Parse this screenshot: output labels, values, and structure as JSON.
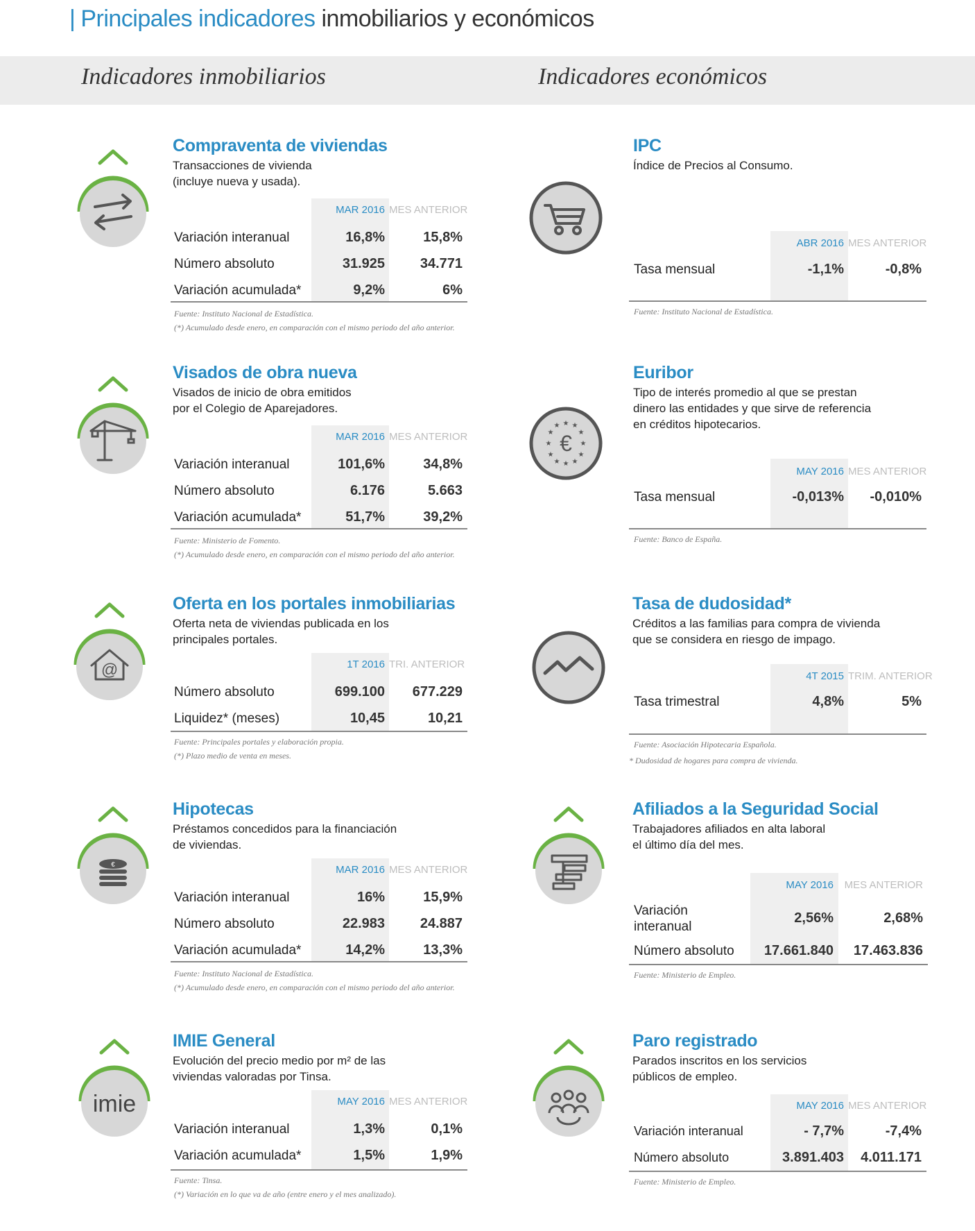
{
  "header": {
    "title_blue": "Principales indicadores",
    "title_dark": "inmobiliarios y económicos",
    "left_heading": "Indicadores inmobiliarios",
    "right_heading": "Indicadores económicos"
  },
  "left": [
    {
      "title": "Compraventa de viviendas",
      "desc1": "Transacciones de vivienda",
      "desc2": "(incluye nueva y usada).",
      "col_cur": "MAR 2016",
      "col_prev": "MES ANTERIOR",
      "rows": [
        {
          "label": "Variación interanual",
          "cur": "16,8%",
          "prev": "15,8%"
        },
        {
          "label": "Número absoluto",
          "cur": "31.925",
          "prev": "34.771"
        },
        {
          "label": "Variación acumulada*",
          "cur": "9,2%",
          "prev": "6%"
        }
      ],
      "note1": "Fuente: Instituto Nacional de Estadística.",
      "note2": "(*) Acumulado desde enero, en comparación con el mismo periodo del año anterior.",
      "icon": "arrows-exchange-icon"
    },
    {
      "title": "Visados de obra nueva",
      "desc1": "Visados de inicio de obra emitidos",
      "desc2": "por el Colegio de Aparejadores.",
      "col_cur": "MAR 2016",
      "col_prev": "MES ANTERIOR",
      "rows": [
        {
          "label": "Variación interanual",
          "cur": "101,6%",
          "prev": "34,8%"
        },
        {
          "label": "Número absoluto",
          "cur": "6.176",
          "prev": "5.663"
        },
        {
          "label": "Variación acumulada*",
          "cur": "51,7%",
          "prev": "39,2%"
        }
      ],
      "note1": "Fuente: Ministerio de Fomento.",
      "note2": "(*) Acumulado desde enero, en comparación con el mismo periodo del año anterior.",
      "icon": "crane-icon"
    },
    {
      "title": "Oferta en los portales inmobiliarias",
      "desc1": "Oferta neta de viviendas publicada en los",
      "desc2": "principales portales.",
      "col_cur": "1T 2016",
      "col_prev": "TRI. ANTERIOR",
      "rows": [
        {
          "label": "Número absoluto",
          "cur": "699.100",
          "prev": "677.229"
        },
        {
          "label": "Liquidez* (meses)",
          "cur": "10,45",
          "prev": "10,21"
        }
      ],
      "note1": "Fuente: Principales portales y elaboración propia.",
      "note2": "(*) Plazo medio de venta en meses.",
      "icon": "house-at-icon"
    },
    {
      "title": "Hipotecas",
      "desc1": "Préstamos concedidos para la financiación",
      "desc2": "de viviendas.",
      "col_cur": "MAR 2016",
      "col_prev": "MES ANTERIOR",
      "rows": [
        {
          "label": "Variación interanual",
          "cur": "16%",
          "prev": "15,9%"
        },
        {
          "label": "Número absoluto",
          "cur": "22.983",
          "prev": "24.887"
        },
        {
          "label": "Variación acumulada*",
          "cur": "14,2%",
          "prev": "13,3%"
        }
      ],
      "note1": "Fuente: Instituto Nacional de Estadística.",
      "note2": "(*) Acumulado desde enero, en comparación con el mismo periodo del año anterior.",
      "icon": "coins-stack-icon"
    },
    {
      "title": "IMIE General",
      "desc1": "Evolución del precio medio por m² de las",
      "desc2": "viviendas valoradas por Tinsa.",
      "col_cur": "MAY 2016",
      "col_prev": "MES ANTERIOR",
      "rows": [
        {
          "label": "Variación interanual",
          "cur": "1,3%",
          "prev": "0,1%"
        },
        {
          "label": "Variación acumulada*",
          "cur": "1,5%",
          "prev": "1,9%"
        }
      ],
      "note1": "Fuente: Tinsa.",
      "note2": "(*) Variación en lo que va de año (entre enero y el mes analizado).",
      "icon": "imie-logo-icon",
      "icon_text": "imie"
    }
  ],
  "right": [
    {
      "title": "IPC",
      "desc1": "Índice de Precios al Consumo.",
      "desc2": "",
      "desc3": "",
      "col_cur": "ABR 2016",
      "col_prev": "MES ANTERIOR",
      "rows": [
        {
          "label": "Tasa mensual",
          "cur": "-1,1%",
          "prev": "-0,8%"
        }
      ],
      "note1": "Fuente: Instituto Nacional de Estadística.",
      "note2": "",
      "icon": "shopping-cart-icon"
    },
    {
      "title": "Euribor",
      "desc1": "Tipo de interés promedio al que se prestan",
      "desc2": "dinero las entidades y que sirve de referencia",
      "desc3": "en créditos hipotecarios.",
      "col_cur": "MAY 2016",
      "col_prev": "MES ANTERIOR",
      "rows": [
        {
          "label": "Tasa mensual",
          "cur": "-0,013%",
          "prev": "-0,010%"
        }
      ],
      "note1": "Fuente: Banco de España.",
      "note2": "",
      "icon": "euro-stars-icon"
    },
    {
      "title": "Tasa de dudosidad*",
      "desc1": "Créditos a las familias para compra de vivienda",
      "desc2": "que se considera en riesgo de impago.",
      "desc3": "",
      "col_cur": "4T 2015",
      "col_prev": "TRIM. ANTERIOR",
      "rows": [
        {
          "label": "Tasa trimestral",
          "cur": "4,8%",
          "prev": "5%"
        }
      ],
      "note1": "Fuente: Asociación Hipotecaria Española.",
      "note2": "* Dudosidad de hogares para compra de vivienda.",
      "icon": "trend-line-icon"
    },
    {
      "title": "Afiliados a la Seguridad Social",
      "desc1": "Trabajadores afiliados en alta laboral",
      "desc2": "el último día del mes.",
      "desc3": "",
      "col_cur": "MAY 2016",
      "col_prev": "MES ANTERIOR",
      "rows": [
        {
          "label": "Variación",
          "label2": "interanual",
          "cur": "2,56%",
          "prev": "2,68%"
        },
        {
          "label": "Número absoluto",
          "cur": "17.661.840",
          "prev": "17.463.836"
        }
      ],
      "note1": "Fuente: Ministerio de Empleo.",
      "note2": "",
      "icon": "document-stack-icon"
    },
    {
      "title": "Paro registrado",
      "desc1": "Parados inscritos en los servicios",
      "desc2": "públicos de empleo.",
      "desc3": "",
      "col_cur": "MAY 2016",
      "col_prev": "MES ANTERIOR",
      "rows": [
        {
          "label": "Variación interanual",
          "cur": "- 7,7%",
          "prev": "-7,4%"
        },
        {
          "label": "Número absoluto",
          "cur": "3.891.403",
          "prev": "4.011.171"
        }
      ],
      "note1": "Fuente: Ministerio de Empleo.",
      "note2": "",
      "icon": "people-group-icon"
    }
  ],
  "colors": {
    "accent_blue": "#2a8cc4",
    "accent_green": "#6ab244",
    "icon_grey": "#d7d7d7",
    "icon_dark": "#555555",
    "shade": "#efefef"
  }
}
